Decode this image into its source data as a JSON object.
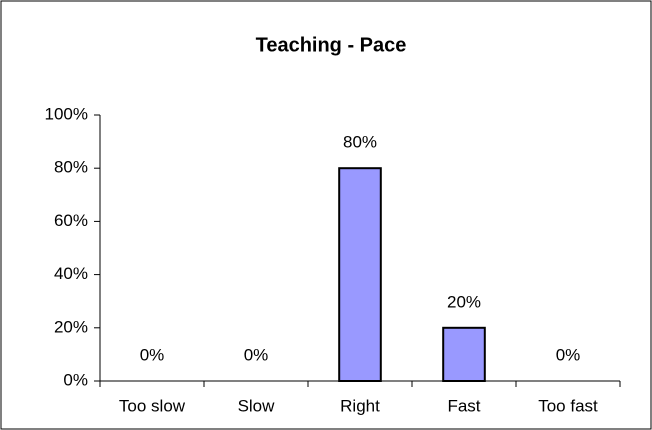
{
  "chart_data": {
    "type": "bar",
    "title": "Teaching - Pace",
    "categories": [
      "Too slow",
      "Slow",
      "Right",
      "Fast",
      "Too fast"
    ],
    "values": [
      0,
      0,
      80,
      20,
      0
    ],
    "value_labels": [
      "0%",
      "0%",
      "80%",
      "20%",
      "0%"
    ],
    "color": "#9999ff",
    "ylim": [
      0,
      100
    ],
    "yticks": [
      {
        "value": 0,
        "label": "0%"
      },
      {
        "value": 20,
        "label": "20%"
      },
      {
        "value": 40,
        "label": "40%"
      },
      {
        "value": 60,
        "label": "60%"
      },
      {
        "value": 80,
        "label": "80%"
      },
      {
        "value": 100,
        "label": "100%"
      }
    ],
    "grid": false
  }
}
